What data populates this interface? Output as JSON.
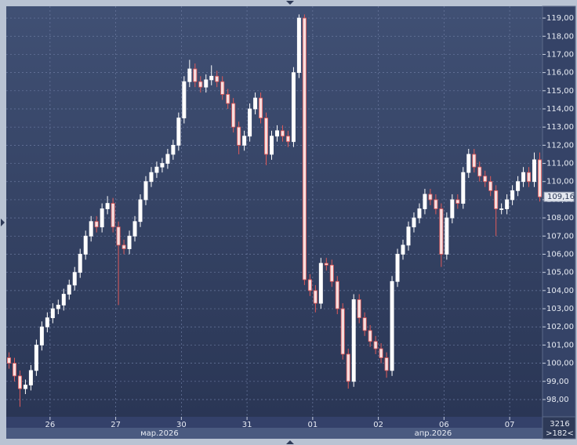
{
  "chart_data": {
    "type": "candlestick",
    "open": [
      100.3,
      100.0,
      99.3,
      98.6,
      98.8,
      99.6,
      101.0,
      102.0,
      102.5,
      103.0,
      103.2,
      103.8,
      104.3,
      105.0,
      106.0,
      107.0,
      107.8,
      107.5,
      108.5,
      108.8,
      107.5,
      106.5,
      106.3,
      107.0,
      107.8,
      109.0,
      110.0,
      110.5,
      110.8,
      111.0,
      111.5,
      112.0,
      113.5,
      115.5,
      116.2,
      115.5,
      115.2,
      115.6,
      115.8,
      115.5,
      114.8,
      114.3,
      113.0,
      112.0,
      112.5,
      114.0,
      114.6,
      113.5,
      111.5,
      112.5,
      112.8,
      112.5,
      112.2,
      116.0,
      119.0,
      104.6,
      104.0,
      103.3,
      105.5,
      105.4,
      104.5,
      103.0,
      100.5,
      99.0,
      103.5,
      102.5,
      101.8,
      101.2,
      100.8,
      100.3,
      99.6,
      104.5,
      106.0,
      106.5,
      107.5,
      108.0,
      108.5,
      109.3,
      109.0,
      108.5,
      106.0,
      108.0,
      109.0,
      108.8,
      110.5,
      111.5,
      110.8,
      110.3,
      110.0,
      109.5,
      108.5,
      108.5,
      109.0,
      109.5,
      110.0,
      110.5,
      110.0,
      111.2
    ],
    "high": [
      100.6,
      100.3,
      99.6,
      99.1,
      99.9,
      101.3,
      102.3,
      102.8,
      103.3,
      103.5,
      104.1,
      104.6,
      105.3,
      106.3,
      107.3,
      108.1,
      108.1,
      108.8,
      109.2,
      109.1,
      107.8,
      106.8,
      107.3,
      108.1,
      109.3,
      110.3,
      110.8,
      111.1,
      111.3,
      111.8,
      112.3,
      113.8,
      115.8,
      116.7,
      116.5,
      115.8,
      115.9,
      116.4,
      116.1,
      115.8,
      115.1,
      114.6,
      113.3,
      112.8,
      114.3,
      114.9,
      114.9,
      113.8,
      112.8,
      113.1,
      113.1,
      112.8,
      116.3,
      119.2,
      119.2,
      104.9,
      104.3,
      105.8,
      105.8,
      105.7,
      104.8,
      103.3,
      100.8,
      103.8,
      103.8,
      102.8,
      102.1,
      101.5,
      101.1,
      100.6,
      104.8,
      106.3,
      106.8,
      107.8,
      108.3,
      108.8,
      109.6,
      109.6,
      109.3,
      108.8,
      108.3,
      109.3,
      109.3,
      110.8,
      111.8,
      111.8,
      111.1,
      110.6,
      110.3,
      109.8,
      108.8,
      109.3,
      109.8,
      110.3,
      110.8,
      110.8,
      111.6,
      111.6
    ],
    "low": [
      99.7,
      99.0,
      97.6,
      98.3,
      98.5,
      99.3,
      100.7,
      101.7,
      102.2,
      102.7,
      102.9,
      103.5,
      104.0,
      104.7,
      105.7,
      106.7,
      107.2,
      107.2,
      108.2,
      107.2,
      103.2,
      106.0,
      106.0,
      106.7,
      107.5,
      108.7,
      109.7,
      110.2,
      110.5,
      110.7,
      111.2,
      111.7,
      113.2,
      115.2,
      115.2,
      114.9,
      114.9,
      115.3,
      115.2,
      114.5,
      114.0,
      112.7,
      111.5,
      111.7,
      112.2,
      113.7,
      113.2,
      110.9,
      111.2,
      112.2,
      112.2,
      111.9,
      111.9,
      115.7,
      104.3,
      103.7,
      102.8,
      103.0,
      105.1,
      104.2,
      102.7,
      100.2,
      98.6,
      98.7,
      102.2,
      101.5,
      100.9,
      100.5,
      100.0,
      99.2,
      99.3,
      104.2,
      105.7,
      106.2,
      107.2,
      107.7,
      108.2,
      108.7,
      108.2,
      105.3,
      105.7,
      107.7,
      108.5,
      108.5,
      110.2,
      110.5,
      110.0,
      109.7,
      109.2,
      107.0,
      108.2,
      108.2,
      108.7,
      109.2,
      109.7,
      109.7,
      109.7,
      108.9
    ],
    "close": [
      100.0,
      99.3,
      98.6,
      98.8,
      99.6,
      101.0,
      102.0,
      102.5,
      103.0,
      103.2,
      103.8,
      104.3,
      105.0,
      106.0,
      107.0,
      107.8,
      107.5,
      108.5,
      108.8,
      107.5,
      106.5,
      106.3,
      107.0,
      107.8,
      109.0,
      110.0,
      110.5,
      110.8,
      111.0,
      111.5,
      112.0,
      113.5,
      115.5,
      116.2,
      115.5,
      115.2,
      115.6,
      115.8,
      115.5,
      114.8,
      114.3,
      113.0,
      112.0,
      112.5,
      114.0,
      114.6,
      113.5,
      111.5,
      112.5,
      112.8,
      112.5,
      112.2,
      116.0,
      119.0,
      104.6,
      104.0,
      103.3,
      105.5,
      105.4,
      104.5,
      103.0,
      100.5,
      99.0,
      103.5,
      102.5,
      101.8,
      101.2,
      100.8,
      100.3,
      99.6,
      104.5,
      106.0,
      106.5,
      107.5,
      108.0,
      108.5,
      109.3,
      109.0,
      108.5,
      106.0,
      108.0,
      109.0,
      108.8,
      110.5,
      111.5,
      110.8,
      110.3,
      110.0,
      109.5,
      108.5,
      108.5,
      109.0,
      109.5,
      110.0,
      110.5,
      110.0,
      111.2,
      109.16
    ],
    "up_color": "#ffffff",
    "down_color": "#e05a5a",
    "ylim": [
      97.05,
      119.65
    ],
    "yticks": [
      {
        "value": 98,
        "label": "98,00"
      },
      {
        "value": 99,
        "label": "99,00"
      },
      {
        "value": 100,
        "label": "100,00"
      },
      {
        "value": 101,
        "label": "101,00"
      },
      {
        "value": 102,
        "label": "102,00"
      },
      {
        "value": 103,
        "label": "103,00"
      },
      {
        "value": 104,
        "label": "104,00"
      },
      {
        "value": 105,
        "label": "105,00"
      },
      {
        "value": 106,
        "label": "106,00"
      },
      {
        "value": 107,
        "label": "107,00"
      },
      {
        "value": 108,
        "label": "108,00"
      },
      {
        "value": 109,
        "label": "109,00"
      },
      {
        "value": 110,
        "label": "110,00"
      },
      {
        "value": 111,
        "label": "111,00"
      },
      {
        "value": 112,
        "label": "112,00"
      },
      {
        "value": 113,
        "label": "113,00"
      },
      {
        "value": 114,
        "label": "114,00"
      },
      {
        "value": 115,
        "label": "115,00"
      },
      {
        "value": 116,
        "label": "116,00"
      },
      {
        "value": 117,
        "label": "117,00"
      },
      {
        "value": 118,
        "label": "118,00"
      },
      {
        "value": 119,
        "label": "119,00"
      }
    ],
    "xlim": [
      -0.5,
      97.5
    ],
    "xticks": [
      {
        "value": 7.5,
        "label": "26"
      },
      {
        "value": 19.5,
        "label": "27"
      },
      {
        "value": 31.5,
        "label": "30"
      },
      {
        "value": 43.5,
        "label": "31"
      },
      {
        "value": 55.5,
        "label": "01"
      },
      {
        "value": 67.5,
        "label": "02"
      },
      {
        "value": 79.5,
        "label": "06"
      },
      {
        "value": 91.5,
        "label": "07"
      }
    ],
    "months": [
      {
        "value": 27.5,
        "label": "мар.2026"
      },
      {
        "value": 77.5,
        "label": "апр.2026"
      }
    ],
    "last_price": {
      "value": 109.16,
      "label": "109,16"
    },
    "grid": true,
    "corner_top": "3216",
    "corner_bottom": ">182<"
  }
}
